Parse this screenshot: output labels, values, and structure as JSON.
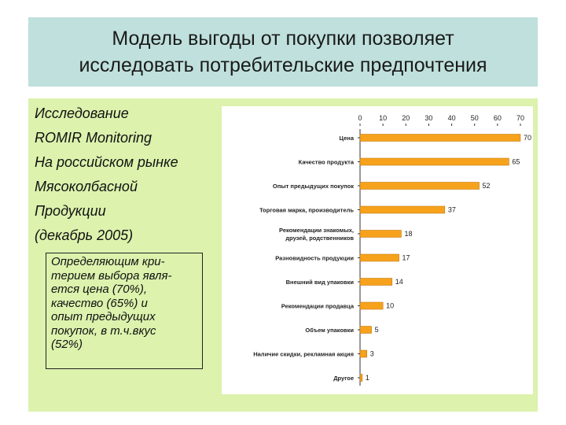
{
  "title": {
    "lines": [
      "Модель выгоды от покупки позволяет",
      "исследовать потребительские предпочтения"
    ]
  },
  "intro": {
    "lines": [
      "Исследование",
      "ROMIR Monitoring",
      "На российском рынке",
      "Мясоколбасной",
      "Продукции",
      "(декабрь 2005)"
    ]
  },
  "note": {
    "lines": [
      "Определяющим кри-",
      "терием выбора явля-",
      "ется цена (70%),",
      "качество (65%) и",
      "опыт предыдущих",
      "покупок, в т.ч.вкус",
      " (52%)"
    ]
  },
  "colors": {
    "bar": "#f7a21c",
    "bar_stroke": "#b86e00",
    "title_bg": "#bfe0dc",
    "content_bg": "#dcf2ad"
  },
  "chart_data": {
    "type": "bar",
    "orientation": "horizontal",
    "categories": [
      "Цена",
      "Качество продукта",
      "Опыт предыдущих покупок",
      "Торговая марка, производитель",
      "Рекомендации знакомых, друзей, родственников",
      "Разновидность продукции",
      "Внешний вид упаковки",
      "Рекомендации продавца",
      "Объем упаковки",
      "Наличие скидки, рекламная акция",
      "Другое"
    ],
    "values": [
      70,
      65,
      52,
      37,
      18,
      17,
      14,
      10,
      5,
      3,
      1
    ],
    "xticks": [
      "0",
      "10",
      "20",
      "30",
      "40",
      "50",
      "60",
      "70"
    ],
    "xlim": [
      0,
      70
    ],
    "grid": false,
    "axis_position": "top"
  }
}
